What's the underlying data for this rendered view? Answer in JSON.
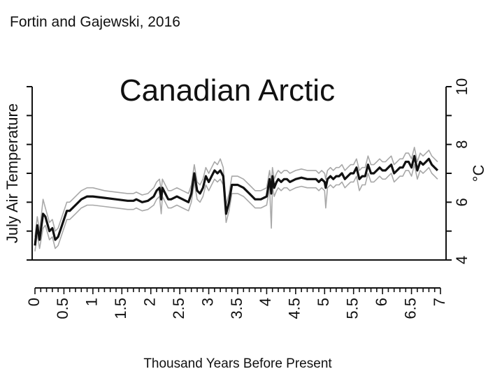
{
  "source_label": "Fortin and Gajewski, 2016",
  "chart_data": {
    "type": "line",
    "title": "Canadian Arctic",
    "xlabel": "Thousand Years Before Present",
    "ylabel_left": "July Air Temperature",
    "ylabel_right": "°C",
    "xlim": [
      0,
      7
    ],
    "ylim": [
      4,
      10
    ],
    "x_ticks": [
      "0",
      "0.5",
      "1",
      "1.5",
      "2",
      "2.5",
      "3",
      "3.5",
      "4",
      "4.5",
      "5",
      "5.5",
      "6",
      "6.5",
      "7"
    ],
    "y_ticks_right": [
      "4",
      "6",
      "8",
      "10"
    ],
    "grid": false,
    "colors": {
      "mean": "#111111",
      "band": "#a8a8a8"
    },
    "series": [
      {
        "role": "mean",
        "x": [
          0.0,
          0.04,
          0.08,
          0.14,
          0.18,
          0.25,
          0.3,
          0.35,
          0.4,
          0.45,
          0.55,
          0.6,
          0.7,
          0.8,
          0.9,
          1.0,
          1.2,
          1.4,
          1.6,
          1.7,
          1.75,
          1.85,
          1.95,
          2.05,
          2.1,
          2.15,
          2.18,
          2.2,
          2.25,
          2.3,
          2.35,
          2.45,
          2.55,
          2.65,
          2.7,
          2.75,
          2.8,
          2.85,
          2.9,
          2.95,
          3.0,
          3.05,
          3.1,
          3.15,
          3.2,
          3.25,
          3.3,
          3.35,
          3.4,
          3.5,
          3.6,
          3.7,
          3.8,
          3.9,
          4.0,
          4.05,
          4.08,
          4.1,
          4.13,
          4.17,
          4.2,
          4.25,
          4.3,
          4.35,
          4.4,
          4.5,
          4.6,
          4.7,
          4.8,
          4.85,
          4.9,
          4.95,
          5.0,
          5.02,
          5.05,
          5.1,
          5.15,
          5.2,
          5.25,
          5.3,
          5.35,
          5.4,
          5.45,
          5.5,
          5.55,
          5.6,
          5.65,
          5.7,
          5.75,
          5.8,
          5.85,
          5.9,
          5.95,
          6.0,
          6.05,
          6.1,
          6.15,
          6.2,
          6.25,
          6.3,
          6.35,
          6.4,
          6.45,
          6.5,
          6.55,
          6.6,
          6.65,
          6.7,
          6.75,
          6.8,
          6.85,
          6.9,
          6.95
        ],
        "y": [
          4.5,
          5.2,
          4.7,
          5.6,
          5.5,
          5.0,
          5.1,
          4.7,
          4.8,
          5.1,
          5.7,
          5.7,
          5.9,
          6.1,
          6.2,
          6.2,
          6.15,
          6.1,
          6.05,
          6.05,
          6.1,
          6.0,
          6.05,
          6.2,
          6.4,
          6.5,
          6.1,
          6.5,
          6.3,
          6.1,
          6.1,
          6.2,
          6.1,
          6.0,
          6.3,
          7.0,
          6.4,
          6.3,
          6.5,
          6.9,
          6.7,
          6.9,
          7.1,
          7.0,
          7.1,
          6.9,
          5.6,
          6.0,
          6.6,
          6.6,
          6.5,
          6.3,
          6.1,
          6.1,
          6.2,
          6.8,
          6.3,
          6.9,
          6.5,
          6.7,
          6.8,
          6.7,
          6.8,
          6.8,
          6.7,
          6.8,
          6.85,
          6.8,
          6.8,
          6.8,
          6.7,
          6.8,
          6.7,
          6.5,
          6.8,
          6.9,
          6.8,
          6.9,
          6.9,
          7.0,
          6.8,
          6.9,
          7.0,
          7.0,
          7.2,
          6.8,
          6.9,
          6.9,
          7.3,
          7.0,
          7.0,
          7.1,
          7.2,
          7.1,
          7.1,
          7.2,
          7.3,
          7.0,
          7.1,
          7.2,
          7.2,
          7.4,
          7.4,
          7.2,
          7.6,
          7.1,
          7.4,
          7.3,
          7.4,
          7.5,
          7.3,
          7.2,
          7.1
        ]
      },
      {
        "role": "upper",
        "x": [
          0.0,
          0.04,
          0.08,
          0.14,
          0.18,
          0.25,
          0.3,
          0.35,
          0.4,
          0.45,
          0.55,
          0.6,
          0.7,
          0.8,
          0.9,
          1.0,
          1.2,
          1.4,
          1.6,
          1.7,
          1.75,
          1.85,
          1.95,
          2.05,
          2.1,
          2.15,
          2.18,
          2.2,
          2.25,
          2.3,
          2.35,
          2.45,
          2.55,
          2.65,
          2.7,
          2.75,
          2.8,
          2.85,
          2.9,
          2.95,
          3.0,
          3.05,
          3.1,
          3.15,
          3.2,
          3.25,
          3.3,
          3.35,
          3.4,
          3.5,
          3.6,
          3.7,
          3.8,
          3.9,
          4.0,
          4.05,
          4.08,
          4.1,
          4.13,
          4.17,
          4.2,
          4.25,
          4.3,
          4.35,
          4.4,
          4.5,
          4.6,
          4.7,
          4.8,
          4.85,
          4.9,
          4.95,
          5.0,
          5.02,
          5.05,
          5.1,
          5.15,
          5.2,
          5.25,
          5.3,
          5.35,
          5.4,
          5.45,
          5.5,
          5.55,
          5.6,
          5.65,
          5.7,
          5.75,
          5.8,
          5.85,
          5.9,
          5.95,
          6.0,
          6.05,
          6.1,
          6.15,
          6.2,
          6.25,
          6.3,
          6.35,
          6.4,
          6.45,
          6.5,
          6.55,
          6.6,
          6.65,
          6.7,
          6.75,
          6.8,
          6.85,
          6.9,
          6.95
        ],
        "y": [
          4.8,
          5.5,
          5.0,
          6.1,
          5.8,
          5.3,
          5.4,
          5.0,
          5.1,
          5.4,
          6.0,
          6.0,
          6.2,
          6.4,
          6.5,
          6.5,
          6.4,
          6.35,
          6.3,
          6.3,
          6.35,
          6.25,
          6.3,
          6.5,
          6.7,
          6.8,
          6.4,
          6.8,
          6.6,
          6.4,
          6.4,
          6.5,
          6.4,
          6.3,
          6.6,
          7.3,
          6.7,
          6.6,
          6.8,
          7.2,
          7.0,
          7.2,
          7.4,
          7.3,
          7.5,
          7.2,
          5.9,
          6.3,
          6.9,
          6.9,
          6.8,
          6.6,
          6.4,
          6.4,
          6.5,
          7.1,
          6.6,
          7.2,
          6.8,
          7.0,
          7.1,
          7.0,
          7.1,
          7.1,
          7.0,
          7.1,
          7.15,
          7.1,
          7.1,
          7.1,
          7.0,
          7.1,
          7.0,
          6.8,
          7.1,
          7.2,
          7.1,
          7.2,
          7.2,
          7.3,
          7.1,
          7.2,
          7.3,
          7.3,
          7.5,
          7.1,
          7.2,
          7.2,
          7.6,
          7.3,
          7.3,
          7.4,
          7.5,
          7.4,
          7.4,
          7.5,
          7.6,
          7.3,
          7.4,
          7.5,
          7.5,
          7.7,
          7.7,
          7.5,
          7.9,
          7.4,
          7.7,
          7.6,
          7.7,
          7.8,
          7.6,
          7.5,
          7.4
        ]
      },
      {
        "role": "lower",
        "x": [
          0.0,
          0.04,
          0.08,
          0.14,
          0.18,
          0.25,
          0.3,
          0.35,
          0.4,
          0.45,
          0.55,
          0.6,
          0.7,
          0.8,
          0.9,
          1.0,
          1.2,
          1.4,
          1.6,
          1.7,
          1.75,
          1.85,
          1.95,
          2.05,
          2.1,
          2.15,
          2.18,
          2.2,
          2.25,
          2.3,
          2.35,
          2.45,
          2.55,
          2.65,
          2.7,
          2.75,
          2.8,
          2.85,
          2.9,
          2.95,
          3.0,
          3.05,
          3.1,
          3.15,
          3.2,
          3.25,
          3.3,
          3.35,
          3.4,
          3.5,
          3.6,
          3.7,
          3.8,
          3.9,
          4.0,
          4.05,
          4.08,
          4.1,
          4.13,
          4.17,
          4.2,
          4.25,
          4.3,
          4.35,
          4.4,
          4.5,
          4.6,
          4.7,
          4.8,
          4.85,
          4.9,
          4.95,
          5.0,
          5.02,
          5.05,
          5.1,
          5.15,
          5.2,
          5.25,
          5.3,
          5.35,
          5.4,
          5.45,
          5.5,
          5.55,
          5.6,
          5.65,
          5.7,
          5.75,
          5.8,
          5.85,
          5.9,
          5.95,
          6.0,
          6.05,
          6.1,
          6.15,
          6.2,
          6.25,
          6.3,
          6.35,
          6.4,
          6.45,
          6.5,
          6.55,
          6.6,
          6.65,
          6.7,
          6.75,
          6.8,
          6.85,
          6.9,
          6.95
        ],
        "y": [
          4.3,
          4.9,
          4.4,
          5.1,
          5.2,
          4.7,
          4.8,
          4.4,
          4.5,
          4.8,
          5.4,
          5.4,
          5.6,
          5.8,
          5.9,
          5.9,
          5.85,
          5.8,
          5.75,
          5.75,
          5.8,
          5.7,
          5.75,
          5.9,
          6.1,
          6.2,
          5.6,
          6.2,
          6.0,
          5.8,
          5.8,
          5.9,
          5.8,
          5.7,
          6.0,
          6.7,
          6.1,
          6.0,
          6.2,
          6.6,
          6.4,
          6.6,
          6.8,
          6.7,
          6.8,
          6.6,
          5.3,
          5.7,
          6.3,
          6.3,
          6.2,
          6.0,
          5.8,
          5.8,
          5.9,
          6.5,
          5.1,
          6.6,
          6.2,
          6.4,
          6.5,
          6.4,
          6.5,
          6.5,
          6.4,
          6.5,
          6.55,
          6.5,
          6.5,
          6.5,
          6.4,
          6.5,
          6.4,
          5.8,
          6.5,
          6.6,
          6.5,
          6.6,
          6.6,
          6.7,
          6.5,
          6.6,
          6.7,
          6.7,
          6.9,
          6.4,
          6.6,
          6.6,
          7.0,
          6.7,
          6.7,
          6.8,
          6.9,
          6.8,
          6.8,
          6.9,
          7.0,
          6.7,
          6.8,
          6.9,
          6.9,
          7.1,
          7.1,
          6.9,
          7.3,
          6.8,
          7.1,
          7.0,
          7.1,
          7.2,
          7.0,
          6.9,
          6.8
        ]
      }
    ]
  }
}
